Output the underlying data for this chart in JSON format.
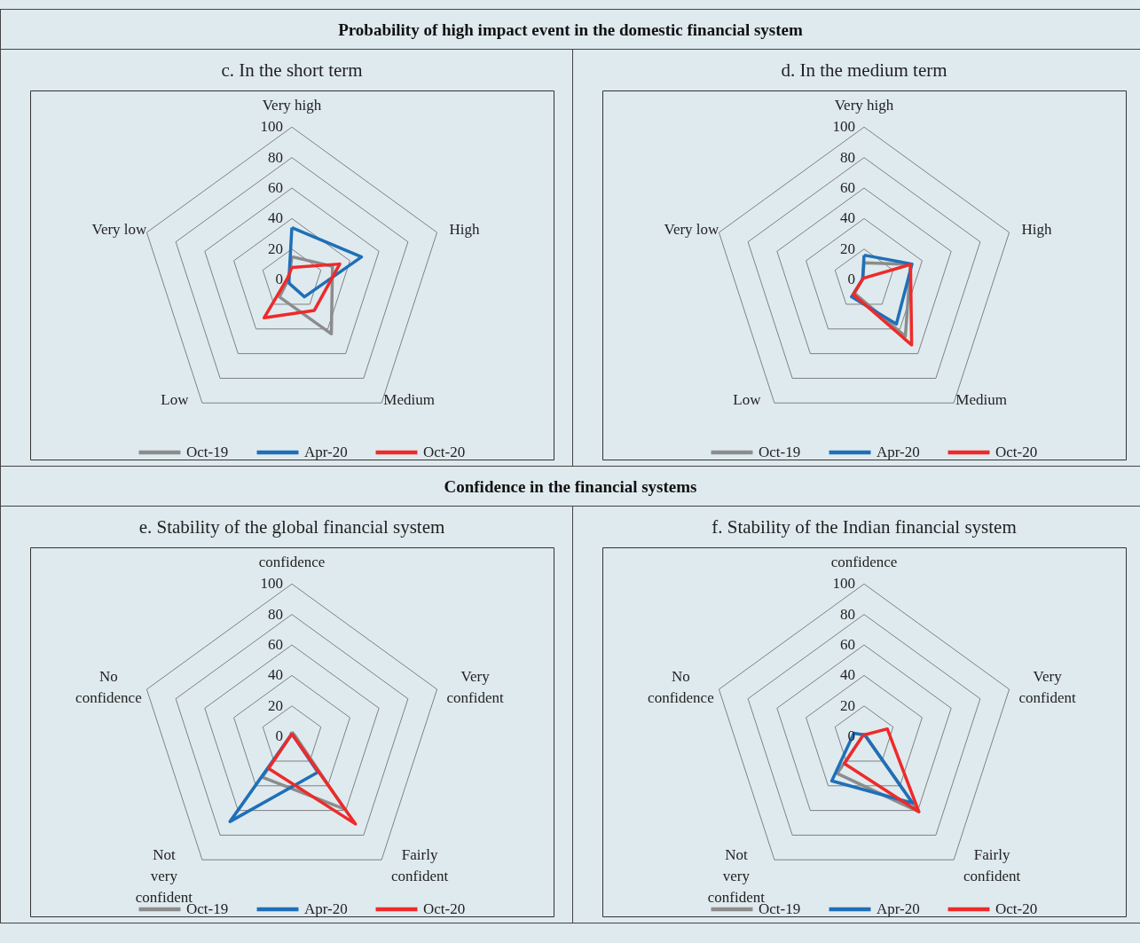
{
  "chart_data": [
    {
      "type": "radar",
      "annotations": [
        "Probability of high impact event in the domestic financial system"
      ],
      "title": "c. In the short term",
      "categories": [
        "Very high",
        "High",
        "Medium",
        "Low",
        "Very low"
      ],
      "ylim": [
        0,
        100
      ],
      "yticks": [
        0,
        20,
        40,
        60,
        80,
        100
      ],
      "grid": true,
      "legend": "bottom",
      "series": [
        {
          "name": "Oct-19",
          "color": "#8c8c8c",
          "values": [
            15,
            28,
            44,
            14,
            2
          ]
        },
        {
          "name": "Apr-20",
          "color": "#1f6fb8",
          "values": [
            34,
            48,
            14,
            3,
            2
          ]
        },
        {
          "name": "Oct-20",
          "color": "#ee2a2a",
          "values": [
            8,
            33,
            25,
            31,
            3
          ]
        }
      ]
    },
    {
      "type": "radar",
      "title": "d. In the medium term",
      "categories": [
        "Very high",
        "High",
        "Medium",
        "Low",
        "Very low"
      ],
      "ylim": [
        0,
        100
      ],
      "yticks": [
        0,
        20,
        40,
        60,
        80,
        100
      ],
      "grid": true,
      "legend": "bottom",
      "series": [
        {
          "name": "Oct-19",
          "color": "#8c8c8c",
          "values": [
            11,
            32,
            46,
            11,
            1
          ]
        },
        {
          "name": "Apr-20",
          "color": "#1f6fb8",
          "values": [
            16,
            33,
            36,
            14,
            1
          ]
        },
        {
          "name": "Oct-20",
          "color": "#ee2a2a",
          "values": [
            1,
            32,
            53,
            12,
            1
          ]
        }
      ]
    },
    {
      "type": "radar",
      "annotations": [
        "Confidence in the financial systems"
      ],
      "title": "e. Stability of the global financial system",
      "categories": [
        "confidence",
        "Very confident",
        "Fairly confident",
        "Not very confident",
        "No confidence"
      ],
      "ylim": [
        0,
        100
      ],
      "yticks": [
        0,
        20,
        40,
        60,
        80,
        100
      ],
      "grid": true,
      "legend": "bottom",
      "series": [
        {
          "name": "Oct-19",
          "color": "#8c8c8c",
          "values": [
            3,
            2,
            59,
            33,
            1
          ]
        },
        {
          "name": "Apr-20",
          "color": "#1f6fb8",
          "values": [
            1,
            1,
            29,
            69,
            1
          ]
        },
        {
          "name": "Oct-20",
          "color": "#ee2a2a",
          "values": [
            2,
            1,
            71,
            26,
            1
          ]
        }
      ]
    },
    {
      "type": "radar",
      "title": "f. Stability of the Indian financial system",
      "categories": [
        "confidence",
        "Very confident",
        "Fairly confident",
        "Not very confident",
        "No confidence"
      ],
      "ylim": [
        0,
        100
      ],
      "yticks": [
        0,
        20,
        40,
        60,
        80,
        100
      ],
      "grid": true,
      "legend": "bottom",
      "series": [
        {
          "name": "Oct-19",
          "color": "#8c8c8c",
          "values": [
            2,
            1,
            61,
            30,
            1
          ]
        },
        {
          "name": "Apr-20",
          "color": "#1f6fb8",
          "values": [
            1,
            1,
            54,
            36,
            7
          ]
        },
        {
          "name": "Oct-20",
          "color": "#ee2a2a",
          "values": [
            1,
            16,
            61,
            22,
            1
          ]
        }
      ]
    }
  ]
}
